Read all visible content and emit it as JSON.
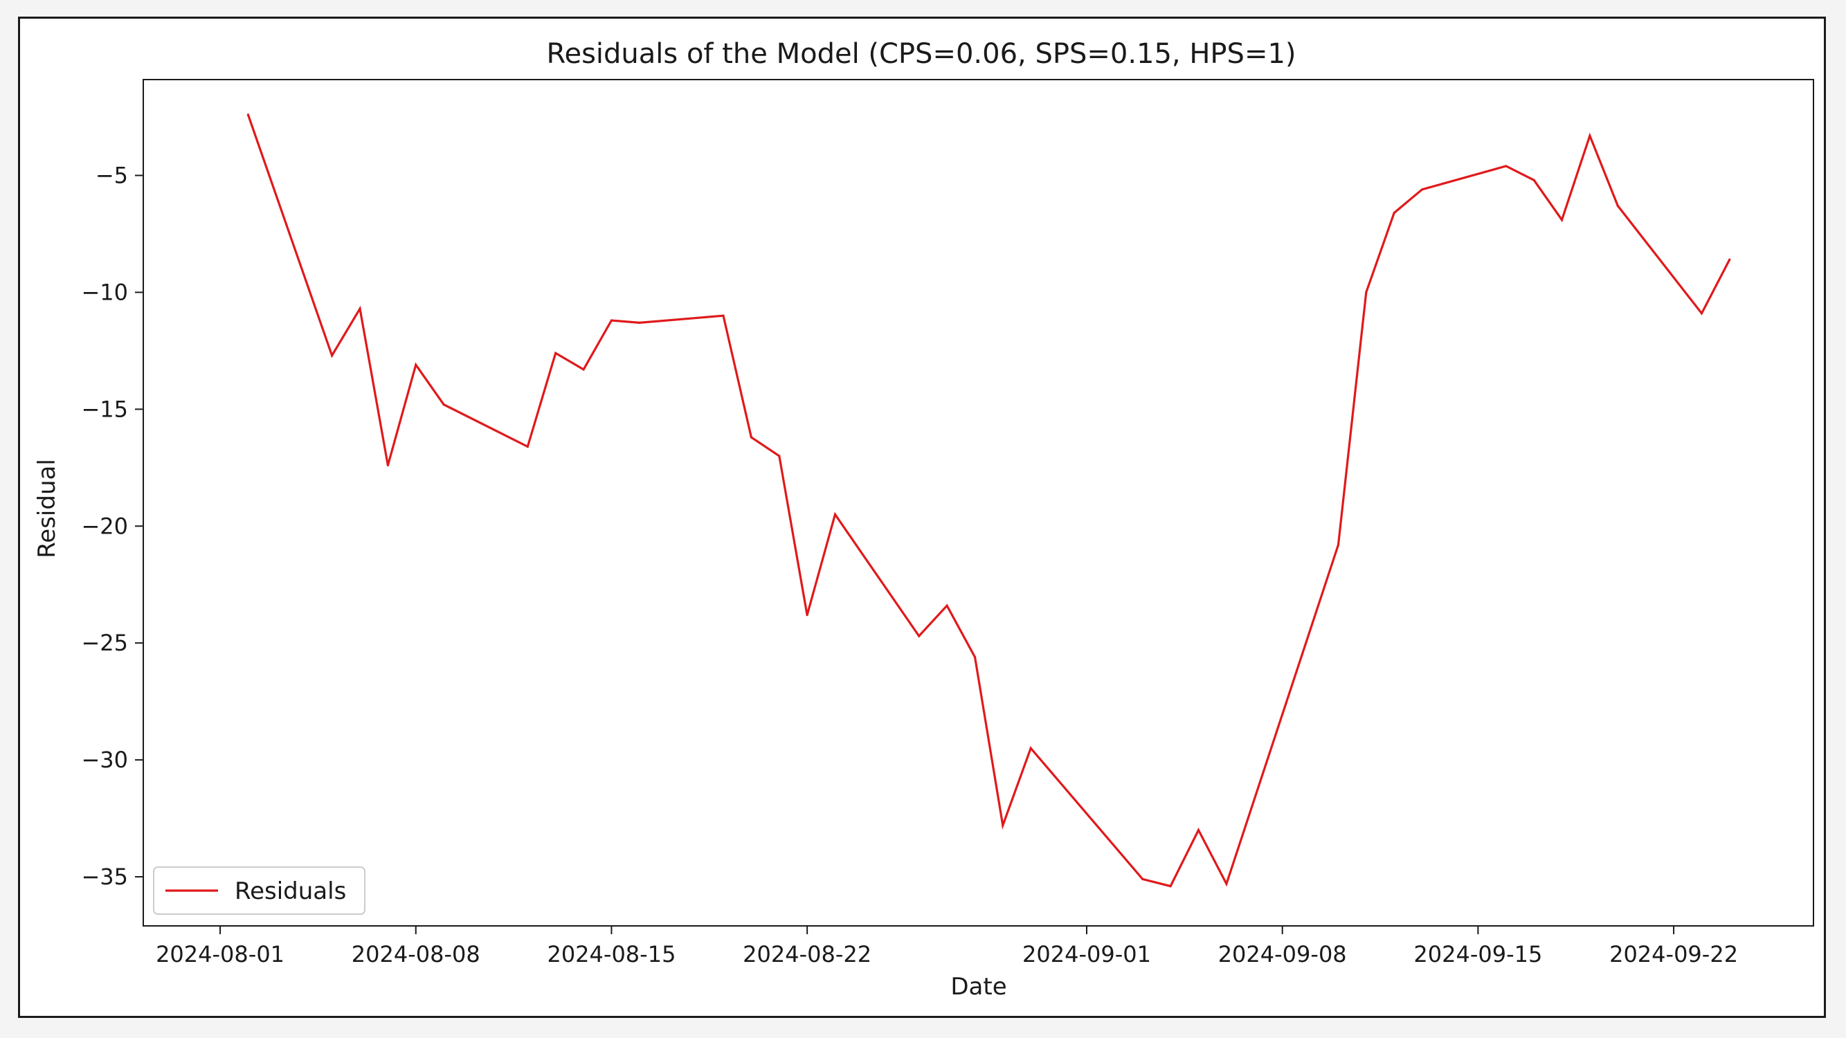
{
  "chart_data": {
    "type": "line",
    "title": "Residuals of the Model (CPS=0.06, SPS=0.15, HPS=1)",
    "xlabel": "Date",
    "ylabel": "Residual",
    "x_ticks": [
      "2024-08-01",
      "2024-08-08",
      "2024-08-15",
      "2024-08-22",
      "2024-09-01",
      "2024-09-08",
      "2024-09-15",
      "2024-09-22"
    ],
    "y_ticks": [
      -5,
      -10,
      -15,
      -20,
      -25,
      -30,
      -35
    ],
    "y_tick_labels": [
      "−5",
      "−10",
      "−15",
      "−20",
      "−25",
      "−30",
      "−35"
    ],
    "xlim": [
      "2024-07-29T06:00",
      "2024-09-27"
    ],
    "ylim": [
      -37.1,
      -0.9
    ],
    "grid": false,
    "legend": {
      "position": "lower-left",
      "entries": [
        {
          "label": "Residuals",
          "color": "#e0191b"
        }
      ]
    },
    "series": [
      {
        "name": "Residuals",
        "color": "#e0191b",
        "points": [
          {
            "x": "2024-08-02",
            "y": -2.4
          },
          {
            "x": "2024-08-05",
            "y": -12.7
          },
          {
            "x": "2024-08-06",
            "y": -10.7
          },
          {
            "x": "2024-08-07",
            "y": -17.4
          },
          {
            "x": "2024-08-08",
            "y": -13.1
          },
          {
            "x": "2024-08-09",
            "y": -14.8
          },
          {
            "x": "2024-08-12",
            "y": -16.6
          },
          {
            "x": "2024-08-13",
            "y": -12.6
          },
          {
            "x": "2024-08-14",
            "y": -13.3
          },
          {
            "x": "2024-08-15",
            "y": -11.2
          },
          {
            "x": "2024-08-16",
            "y": -11.3
          },
          {
            "x": "2024-08-19",
            "y": -11.0
          },
          {
            "x": "2024-08-20",
            "y": -16.2
          },
          {
            "x": "2024-08-21",
            "y": -17.0
          },
          {
            "x": "2024-08-22",
            "y": -23.8
          },
          {
            "x": "2024-08-23",
            "y": -19.5
          },
          {
            "x": "2024-08-26",
            "y": -24.7
          },
          {
            "x": "2024-08-27",
            "y": -23.4
          },
          {
            "x": "2024-08-28",
            "y": -25.6
          },
          {
            "x": "2024-08-29",
            "y": -32.8
          },
          {
            "x": "2024-08-30",
            "y": -29.5
          },
          {
            "x": "2024-09-03",
            "y": -35.1
          },
          {
            "x": "2024-09-04",
            "y": -35.4
          },
          {
            "x": "2024-09-05",
            "y": -33.0
          },
          {
            "x": "2024-09-06",
            "y": -35.3
          },
          {
            "x": "2024-09-10",
            "y": -20.8
          },
          {
            "x": "2024-09-11",
            "y": -10.0
          },
          {
            "x": "2024-09-12",
            "y": -6.6
          },
          {
            "x": "2024-09-13",
            "y": -5.6
          },
          {
            "x": "2024-09-16",
            "y": -4.6
          },
          {
            "x": "2024-09-17",
            "y": -5.2
          },
          {
            "x": "2024-09-18",
            "y": -6.9
          },
          {
            "x": "2024-09-19",
            "y": -3.3
          },
          {
            "x": "2024-09-20",
            "y": -6.3
          },
          {
            "x": "2024-09-23",
            "y": -10.9
          },
          {
            "x": "2024-09-24",
            "y": -8.6
          }
        ]
      }
    ]
  }
}
